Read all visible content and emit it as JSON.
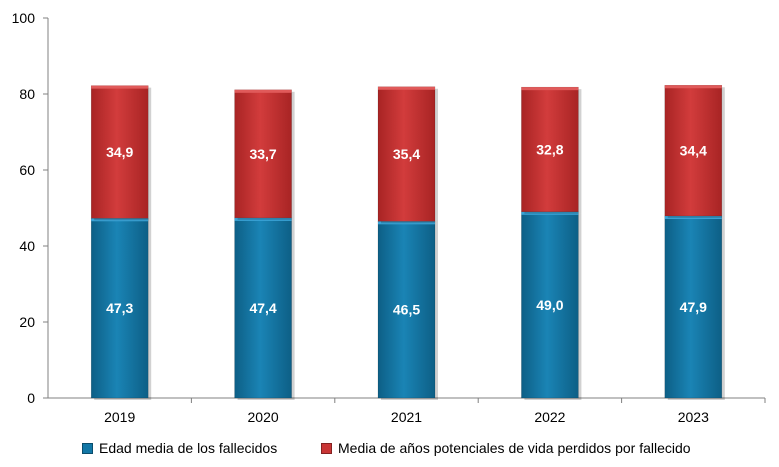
{
  "chart_data": {
    "type": "bar",
    "stacked": true,
    "categories": [
      "2019",
      "2020",
      "2021",
      "2022",
      "2023"
    ],
    "series": [
      {
        "name": "Edad media de los fallecidos",
        "values": [
          47.3,
          47.4,
          46.5,
          49.0,
          47.9
        ],
        "labels": [
          "47,3",
          "47,4",
          "46,5",
          "49,0",
          "47,9"
        ],
        "color": "#1277A6"
      },
      {
        "name": "Media de años potenciales de vida perdidos por fallecido",
        "values": [
          34.9,
          33.7,
          35.4,
          32.8,
          34.4
        ],
        "labels": [
          "34,9",
          "33,7",
          "35,4",
          "32,8",
          "34,4"
        ],
        "color": "#C93535"
      }
    ],
    "title": "",
    "xlabel": "",
    "ylabel": "",
    "ylim": [
      0,
      100
    ],
    "yticks": [
      0,
      20,
      40,
      60,
      80,
      100
    ],
    "grid": false,
    "legend": "bottom"
  }
}
